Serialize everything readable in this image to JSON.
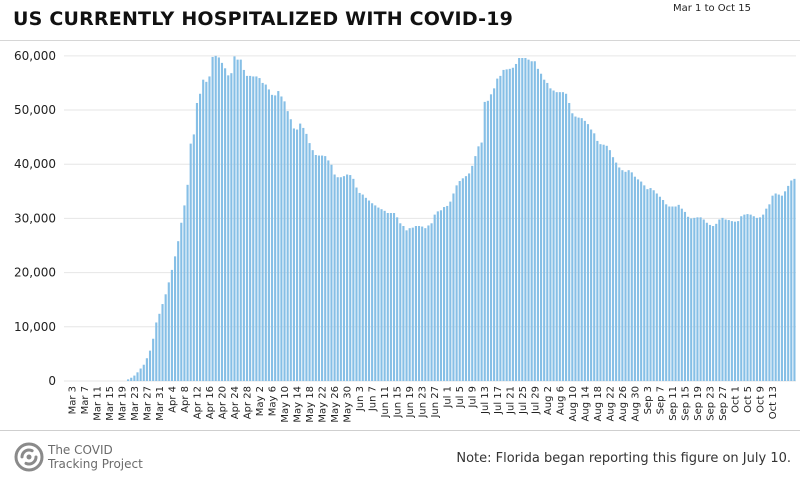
{
  "header": {
    "title": "US CURRENTLY HOSPITALIZED WITH COVID-19",
    "date_range": "Mar 1 to Oct 15"
  },
  "footer": {
    "logo_line1": "The COVID",
    "logo_line2": "Tracking Project",
    "note": "Note: Florida began reporting this figure on July 10."
  },
  "colors": {
    "bar": "#86bfe6",
    "grid": "#e6e6e6",
    "logo": "#8a8a8a"
  },
  "chart_data": {
    "type": "bar",
    "title": "US CURRENTLY HOSPITALIZED WITH COVID-19",
    "xlabel": "",
    "ylabel": "",
    "ylim": [
      0,
      62000
    ],
    "yticks": [
      0,
      10000,
      20000,
      30000,
      40000,
      50000,
      60000
    ],
    "ytick_labels": [
      "0",
      "10,000",
      "20,000",
      "30,000",
      "40,000",
      "50,000",
      "60,000"
    ],
    "x_start": "Mar 1",
    "x_end": "Oct 15",
    "xtick_labels": [
      "Mar 3",
      "Mar 7",
      "Mar 11",
      "Mar 15",
      "Mar 19",
      "Mar 23",
      "Mar 27",
      "Mar 31",
      "Apr 4",
      "Apr 8",
      "Apr 12",
      "Apr 16",
      "Apr 20",
      "Apr 24",
      "Apr 28",
      "May 2",
      "May 6",
      "May 10",
      "May 14",
      "May 18",
      "May 22",
      "May 26",
      "May 30",
      "Jun 3",
      "Jun 7",
      "Jun 11",
      "Jun 15",
      "Jun 19",
      "Jun 23",
      "Jun 27",
      "Jul 1",
      "Jul 5",
      "Jul 9",
      "Jul 13",
      "Jul 17",
      "Jul 21",
      "Jul 25",
      "Jul 29",
      "Aug 2",
      "Aug 6",
      "Aug 10",
      "Aug 14",
      "Aug 18",
      "Aug 22",
      "Aug 26",
      "Aug 30",
      "Sep 3",
      "Sep 7",
      "Sep 11",
      "Sep 15",
      "Sep 19",
      "Sep 23",
      "Sep 27",
      "Oct 1",
      "Oct 5",
      "Oct 9",
      "Oct 13"
    ],
    "grid": true,
    "legend": "none",
    "values": [
      0,
      0,
      0,
      0,
      0,
      0,
      0,
      0,
      0,
      0,
      0,
      0,
      0,
      0,
      0,
      0,
      0,
      0,
      0,
      0,
      300,
      600,
      1000,
      1600,
      2300,
      3000,
      4200,
      5600,
      7800,
      10800,
      12400,
      14200,
      16000,
      18200,
      20500,
      23000,
      25800,
      29200,
      32400,
      36200,
      43800,
      45500,
      51300,
      53000,
      55600,
      55200,
      56200,
      59800,
      60000,
      59700,
      58700,
      57700,
      56400,
      56800,
      59900,
      59300,
      59300,
      57400,
      56300,
      56300,
      56200,
      56200,
      55900,
      55000,
      54700,
      53800,
      52800,
      52700,
      53500,
      52500,
      51600,
      49800,
      48300,
      46600,
      46400,
      47500,
      46700,
      45600,
      43900,
      42600,
      41700,
      41600,
      41600,
      41500,
      40700,
      39900,
      38100,
      37600,
      37600,
      37800,
      38100,
      38000,
      37300,
      35700,
      34700,
      34400,
      33800,
      33300,
      32800,
      32400,
      32000,
      31700,
      31400,
      31000,
      31000,
      31000,
      30200,
      29100,
      28600,
      27800,
      28200,
      28300,
      28600,
      28600,
      28500,
      28200,
      28700,
      29100,
      30700,
      31300,
      31500,
      32100,
      32300,
      33100,
      34600,
      36100,
      36900,
      37400,
      37800,
      38300,
      39700,
      41500,
      43300,
      44000,
      51500,
      51700,
      52900,
      54000,
      55800,
      56300,
      57400,
      57500,
      57600,
      57800,
      58500,
      59600,
      59600,
      59600,
      59300,
      59000,
      59000,
      57600,
      56700,
      55600,
      55000,
      54000,
      53600,
      53300,
      53300,
      53300,
      53000,
      51300,
      49400,
      48800,
      48600,
      48500,
      48000,
      47400,
      46400,
      45700,
      44300,
      43700,
      43600,
      43400,
      42600,
      41300,
      40300,
      39400,
      38900,
      38600,
      38900,
      38500,
      37700,
      37200,
      36800,
      36100,
      35400,
      35600,
      35200,
      34600,
      34000,
      33400,
      32600,
      32200,
      32200,
      32200,
      32500,
      31800,
      31200,
      30300,
      30000,
      30100,
      30200,
      30200,
      29800,
      29200,
      28800,
      28600,
      29000,
      29800,
      30100,
      29800,
      29700,
      29500,
      29400,
      29500,
      30400,
      30700,
      30800,
      30700,
      30400,
      30100,
      30200,
      30700,
      31800,
      32600,
      34200,
      34600,
      34400,
      34200,
      35000,
      36000,
      37000,
      37300
    ]
  }
}
